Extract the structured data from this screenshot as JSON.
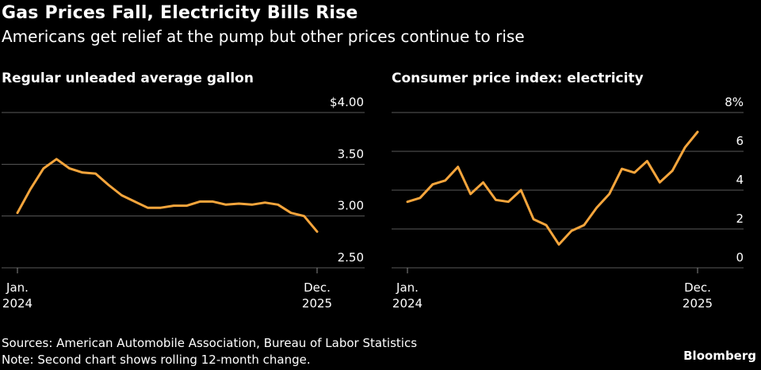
{
  "title": "Gas Prices Fall, Electricity Bills Rise",
  "subtitle": "Americans get relief at the pump but other prices continue to rise",
  "footer": {
    "sources": "Sources: American Automobile Association, Bureau of Labor Statistics",
    "note": "Note: Second chart shows rolling 12-month change.",
    "brand": "Bloomberg"
  },
  "colors": {
    "line": "#f5a53c",
    "grid": "#5a5a5a",
    "background": "#000000"
  },
  "chart_data": [
    {
      "type": "line",
      "title": "Regular unleaded average gallon",
      "ylim": [
        2.5,
        4.0
      ],
      "yticks": [
        2.5,
        3.0,
        3.5,
        4.0
      ],
      "ytick_labels": [
        "2.50",
        "3.00",
        "3.50",
        "$4.00"
      ],
      "xtick_labels": [
        [
          "Jan.",
          "2024"
        ],
        [
          "Dec.",
          "2025"
        ]
      ],
      "x": [
        0,
        1,
        2,
        3,
        4,
        5,
        6,
        7,
        8,
        9,
        10,
        11,
        12,
        13,
        14,
        15,
        16,
        17,
        18,
        19,
        20,
        21,
        22,
        23
      ],
      "values": [
        3.03,
        3.26,
        3.46,
        3.55,
        3.46,
        3.42,
        3.41,
        3.3,
        3.2,
        3.14,
        3.08,
        3.08,
        3.1,
        3.1,
        3.14,
        3.14,
        3.11,
        3.12,
        3.11,
        3.13,
        3.11,
        3.03,
        3.0,
        2.85
      ],
      "xlabel": "",
      "ylabel": "",
      "grid": true
    },
    {
      "type": "line",
      "title": "Consumer price index: electricity",
      "ylim": [
        0,
        8
      ],
      "yticks": [
        0,
        2,
        4,
        6,
        8
      ],
      "ytick_labels": [
        "0",
        "2",
        "4",
        "6",
        "8%"
      ],
      "xtick_labels": [
        [
          "Jan.",
          "2024"
        ],
        [
          "Dec.",
          "2025"
        ]
      ],
      "x": [
        0,
        1,
        2,
        3,
        4,
        5,
        6,
        7,
        8,
        9,
        10,
        11,
        12,
        13,
        14,
        15,
        16,
        17,
        18,
        19,
        20,
        21,
        22,
        23
      ],
      "values": [
        3.4,
        3.6,
        4.3,
        4.5,
        5.2,
        3.8,
        4.4,
        3.5,
        3.4,
        4.0,
        2.5,
        2.2,
        1.2,
        1.9,
        2.2,
        3.1,
        3.8,
        5.1,
        4.9,
        5.5,
        4.4,
        5.0,
        6.2,
        7.0
      ],
      "xlabel": "",
      "ylabel": "",
      "grid": true
    }
  ]
}
